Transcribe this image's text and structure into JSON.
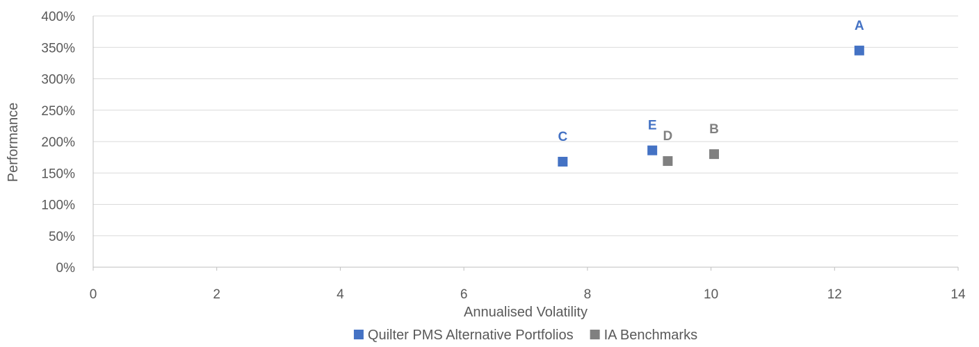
{
  "chart_data": {
    "type": "scatter",
    "xlabel": "Annualised Volatility",
    "ylabel": "Performance",
    "xlim": [
      0,
      14
    ],
    "ylim": [
      0,
      400
    ],
    "x_ticks": [
      0,
      2,
      4,
      6,
      8,
      10,
      12,
      14
    ],
    "y_ticks": [
      0,
      50,
      100,
      150,
      200,
      250,
      300,
      350,
      400
    ],
    "y_tick_labels": [
      "0%",
      "50%",
      "100%",
      "150%",
      "200%",
      "250%",
      "300%",
      "350%",
      "400%"
    ],
    "grid": "horizontal",
    "legend_position": "bottom",
    "series": [
      {
        "name": "Quilter PMS Alternative Portfolios",
        "color": "#4472C4",
        "marker": "square",
        "points": [
          {
            "label": "A",
            "x": 12.4,
            "y": 345
          },
          {
            "label": "C",
            "x": 7.6,
            "y": 168
          },
          {
            "label": "E",
            "x": 9.05,
            "y": 186
          }
        ]
      },
      {
        "name": "IA Benchmarks",
        "color": "#808080",
        "marker": "square",
        "points": [
          {
            "label": "D",
            "x": 9.3,
            "y": 169
          },
          {
            "label": "B",
            "x": 10.05,
            "y": 180
          }
        ]
      }
    ]
  }
}
